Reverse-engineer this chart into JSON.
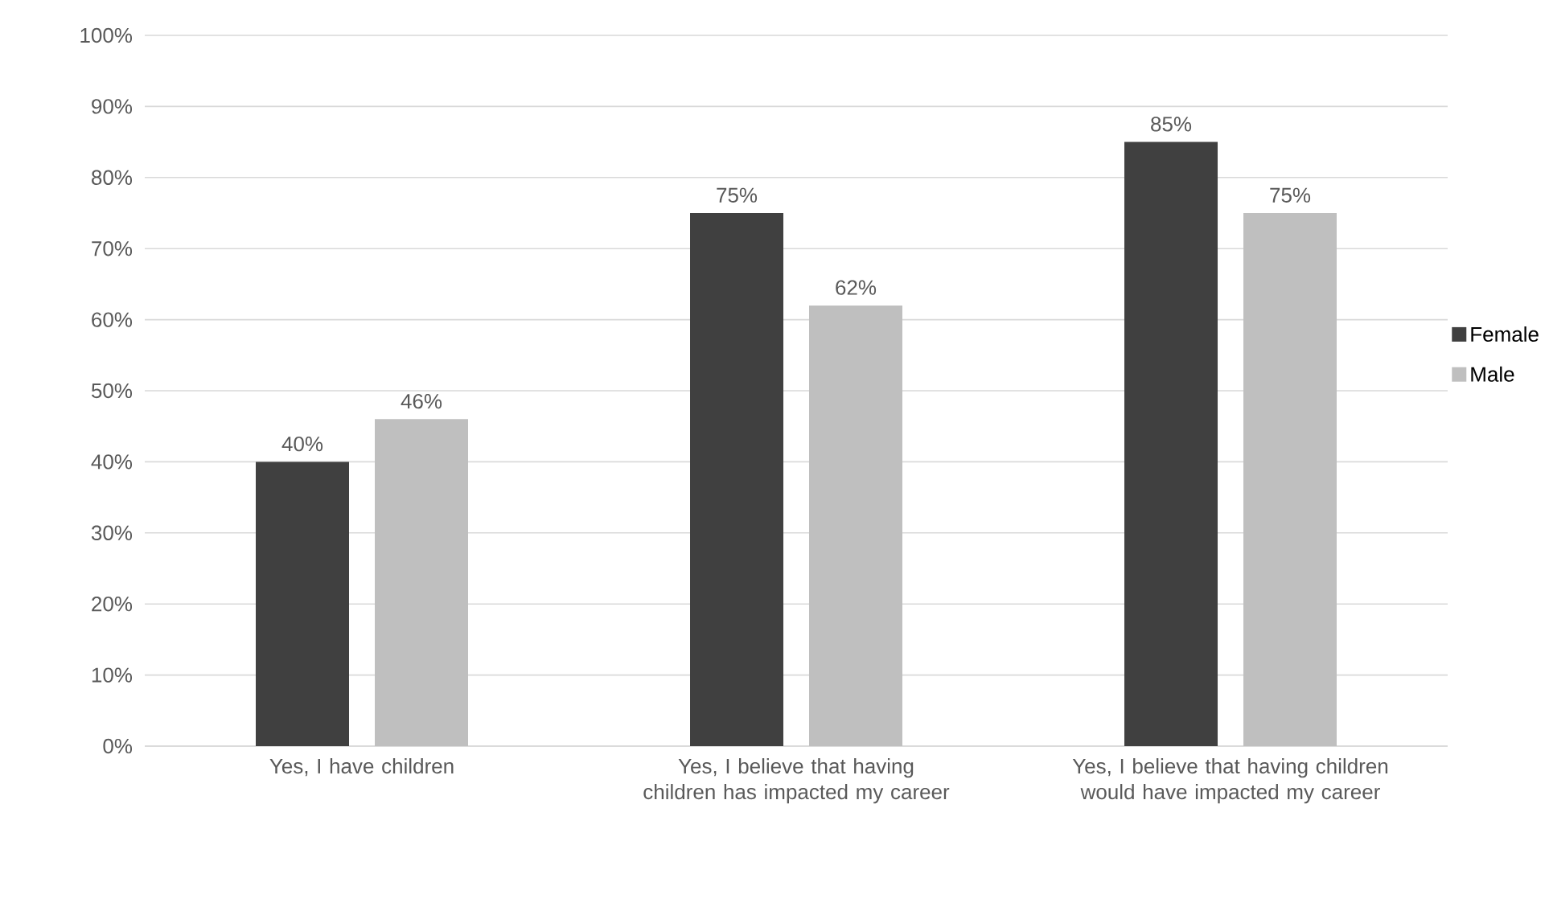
{
  "chart_data": {
    "type": "bar",
    "categories": [
      "Yes, I have children",
      "Yes, I believe that having children has impacted my career",
      "Yes, I believe that having children would have impacted my career"
    ],
    "series": [
      {
        "name": "Female",
        "color": "#404040",
        "values": [
          40,
          75,
          85
        ],
        "value_labels": [
          "40%",
          "75%",
          "85%"
        ]
      },
      {
        "name": "Male",
        "color": "#bfbfbf",
        "values": [
          46,
          62,
          75
        ],
        "value_labels": [
          "46%",
          "62%",
          "75%"
        ]
      }
    ],
    "ylim": [
      0,
      100
    ],
    "yticks": [
      {
        "value": 0,
        "label": "0%"
      },
      {
        "value": 10,
        "label": "10%"
      },
      {
        "value": 20,
        "label": "20%"
      },
      {
        "value": 30,
        "label": "30%"
      },
      {
        "value": 40,
        "label": "40%"
      },
      {
        "value": 50,
        "label": "50%"
      },
      {
        "value": 60,
        "label": "60%"
      },
      {
        "value": 70,
        "label": "70%"
      },
      {
        "value": 80,
        "label": "80%"
      },
      {
        "value": 90,
        "label": "90%"
      },
      {
        "value": 100,
        "label": "100%"
      }
    ],
    "grid": "y",
    "legend": "right"
  }
}
